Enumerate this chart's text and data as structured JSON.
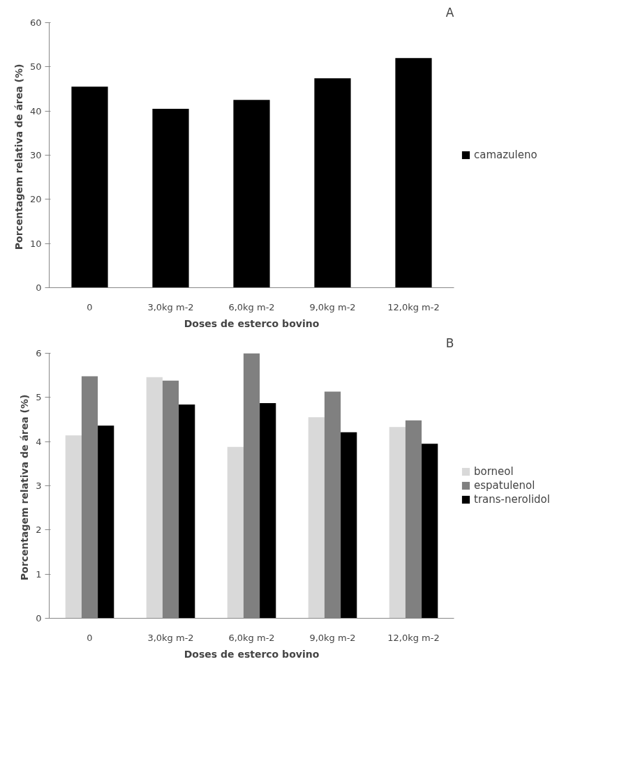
{
  "chart_data": [
    {
      "type": "bar",
      "categories": [
        "0",
        "3,0kg m-2",
        "6,0kg m-2",
        "9,0kg m-2",
        "12,0kg m-2"
      ],
      "xlabel": "Doses de esterco bovino",
      "ylabel": "Porcentagem  relativa de área (%)",
      "ylim": [
        0,
        60
      ],
      "yticks": [
        0,
        10,
        20,
        30,
        40,
        50,
        60
      ],
      "grid": false,
      "legend": "right",
      "annotations": [
        "A"
      ],
      "series": [
        {
          "name": "camazuleno",
          "color": "#000000",
          "values": [
            45.5,
            40.5,
            42.5,
            47.4,
            52.0
          ]
        }
      ]
    },
    {
      "type": "bar",
      "categories": [
        "0",
        "3,0kg m-2",
        "6,0kg m-2",
        "9,0kg m-2",
        "12,0kg m-2"
      ],
      "xlabel": "Doses de esterco bovino",
      "ylabel": "Porcentagem  relativa de área (%)",
      "ylim": [
        0,
        6
      ],
      "yticks": [
        0,
        1,
        2,
        3,
        4,
        5,
        6
      ],
      "grid": false,
      "legend": "right",
      "annotations": [
        "B"
      ],
      "series": [
        {
          "name": "borneol",
          "color": "#d9d9d9",
          "values": [
            4.14,
            5.46,
            3.88,
            4.55,
            4.33
          ]
        },
        {
          "name": "espatulenol",
          "color": "#808080",
          "values": [
            5.48,
            5.38,
            6.0,
            5.13,
            4.48
          ]
        },
        {
          "name": "trans-nerolidol",
          "color": "#000000",
          "values": [
            4.36,
            4.84,
            4.87,
            4.21,
            3.95
          ]
        }
      ]
    }
  ]
}
